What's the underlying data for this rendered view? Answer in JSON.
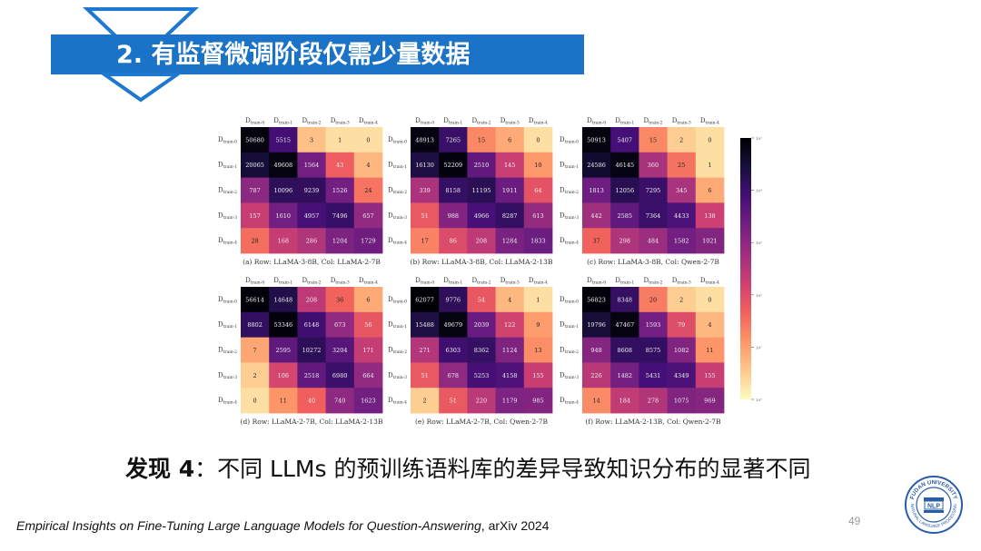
{
  "slide": {
    "title": "2. 有监督微调阶段仅需少量数据",
    "finding_label": "发现 4",
    "finding_text": "：不同 LLMs 的预训练语料库的差异导致知识分布的显著不同",
    "citation_italic": "Empirical Insights on Fine-Tuning Large Language Models for  Question-Answering",
    "citation_rest": ", arXiv 2024",
    "page_number": "49",
    "logo": {
      "top_text": "FUDAN UNIVERSITY",
      "bottom_text": "NATURAL LANGUAGE PROCESSING",
      "center_text": "NLP"
    }
  },
  "colors": {
    "title_bar": "#1a73c6",
    "title_outline": "#1f78d0",
    "logo_blue": "#2a5da8",
    "colormap": [
      "#fcfdbf",
      "#fdc78d",
      "#fd9668",
      "#f1605d",
      "#cd4071",
      "#9e2f7f",
      "#721f81",
      "#440f76",
      "#180f3d",
      "#000004"
    ]
  },
  "chart_data": [
    {
      "type": "heatmap",
      "caption": "(a) Row: LLaMA-3-8B, Col: LLaMA-2-7B",
      "row_labels": [
        "D_train-0",
        "D_train-1",
        "D_train-2",
        "D_train-3",
        "D_train-4"
      ],
      "col_labels": [
        "D_train-0",
        "D_train-1",
        "D_train-2",
        "D_train-3",
        "D_train-4"
      ],
      "values": [
        [
          50680,
          5515,
          3,
          1,
          0
        ],
        [
          20065,
          49608,
          1564,
          43,
          4
        ],
        [
          787,
          10096,
          9239,
          1526,
          24
        ],
        [
          157,
          1610,
          4957,
          7496,
          657
        ],
        [
          28,
          168,
          286,
          1204,
          1729
        ]
      ]
    },
    {
      "type": "heatmap",
      "caption": "(b) Row: LLaMA-3-8B, Col: LLaMA-2-13B",
      "row_labels": [
        "D_train-0",
        "D_train-1",
        "D_train-2",
        "D_train-3",
        "D_train-4"
      ],
      "col_labels": [
        "D_train-0",
        "D_train-1",
        "D_train-2",
        "D_train-3",
        "D_train-4"
      ],
      "values": [
        [
          48913,
          7265,
          15,
          6,
          0
        ],
        [
          16130,
          52209,
          2510,
          145,
          10
        ],
        [
          339,
          8158,
          11195,
          1911,
          64
        ],
        [
          51,
          988,
          4966,
          8287,
          613
        ],
        [
          17,
          86,
          208,
          1284,
          1833
        ]
      ]
    },
    {
      "type": "heatmap",
      "caption": "(c) Row: LLaMA-3-8B, Col: Qwen-2-7B",
      "row_labels": [
        "D_train-0",
        "D_train-1",
        "D_train-2",
        "D_train-3",
        "D_train-4"
      ],
      "col_labels": [
        "D_train-0",
        "D_train-1",
        "D_train-2",
        "D_train-3",
        "D_train-4"
      ],
      "values": [
        [
          50913,
          5407,
          15,
          2,
          0
        ],
        [
          24586,
          46145,
          360,
          25,
          1
        ],
        [
          1813,
          12056,
          7295,
          345,
          6
        ],
        [
          442,
          2585,
          7364,
          4433,
          138
        ],
        [
          37,
          298,
          484,
          1582,
          1021
        ]
      ]
    },
    {
      "type": "heatmap",
      "caption": "(d) Row: LLaMA-2-7B, Col: LLaMA-2-13B",
      "row_labels": [
        "D_train-0",
        "D_train-1",
        "D_train-2",
        "D_train-3",
        "D_train-4"
      ],
      "col_labels": [
        "D_train-0",
        "D_train-1",
        "D_train-2",
        "D_train-3",
        "D_train-4"
      ],
      "values": [
        [
          56614,
          14648,
          208,
          36,
          6
        ],
        [
          8802,
          53346,
          6148,
          673,
          56
        ],
        [
          7,
          2595,
          10272,
          3204,
          171
        ],
        [
          2,
          106,
          2518,
          6980,
          664
        ],
        [
          0,
          11,
          40,
          740,
          1623
        ]
      ]
    },
    {
      "type": "heatmap",
      "caption": "(e) Row: LLaMA-2-7B, Col: Qwen-2-7B",
      "row_labels": [
        "D_train-0",
        "D_train-1",
        "D_train-2",
        "D_train-3",
        "D_train-4"
      ],
      "col_labels": [
        "D_train-0",
        "D_train-1",
        "D_train-2",
        "D_train-3",
        "D_train-4"
      ],
      "values": [
        [
          62077,
          9776,
          54,
          4,
          1
        ],
        [
          15488,
          49679,
          2039,
          122,
          9
        ],
        [
          271,
          6303,
          8362,
          1124,
          13
        ],
        [
          51,
          678,
          5253,
          4158,
          155
        ],
        [
          2,
          51,
          220,
          1179,
          985
        ]
      ]
    },
    {
      "type": "heatmap",
      "caption": "(f) Row: LLaMA-2-13B, Col: Qwen-2-7B",
      "row_labels": [
        "D_train-0",
        "D_train-1",
        "D_train-2",
        "D_train-3",
        "D_train-4"
      ],
      "col_labels": [
        "D_train-0",
        "D_train-1",
        "D_train-2",
        "D_train-3",
        "D_train-4"
      ],
      "values": [
        [
          56823,
          8348,
          20,
          2,
          0
        ],
        [
          19796,
          47467,
          1593,
          79,
          4
        ],
        [
          948,
          8608,
          8575,
          1082,
          11
        ],
        [
          226,
          1482,
          5431,
          4349,
          155
        ],
        [
          14,
          184,
          278,
          1075,
          969
        ]
      ]
    }
  ],
  "colorbar": {
    "scale": "log",
    "tick_labels": [
      "10⁵",
      "10⁴",
      "10³",
      "10²",
      "10¹",
      "10⁰"
    ]
  }
}
